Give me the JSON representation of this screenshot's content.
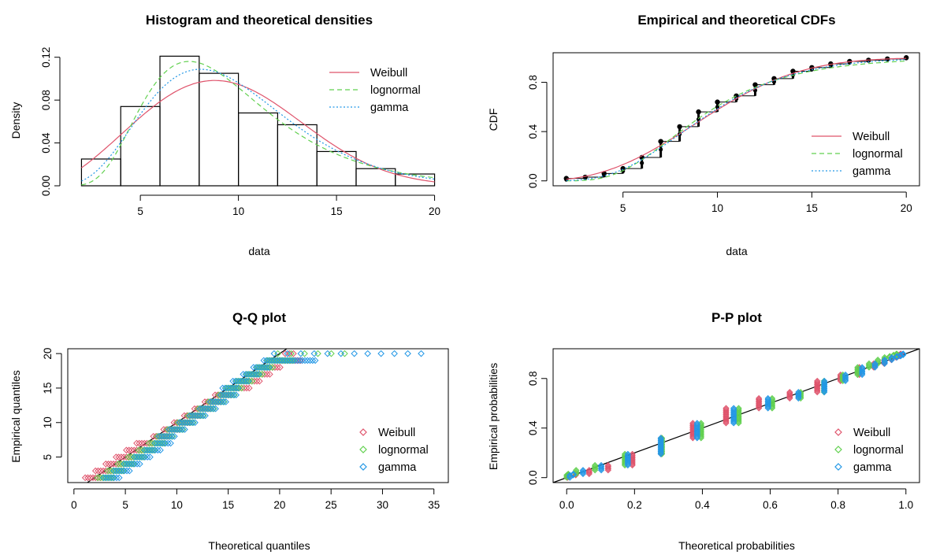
{
  "colors": {
    "weibull": "#DF536B",
    "lognormal": "#61D04F",
    "gamma": "#2297E6",
    "axis": "#000000",
    "empirical": "#000000"
  },
  "chart_data": [
    {
      "type": "bar",
      "title": "Histogram and theoretical densities",
      "xlabel": "data",
      "ylabel": "Density",
      "xlim": [
        1.3,
        20.7
      ],
      "ylim": [
        0,
        0.122
      ],
      "xticks": [
        5,
        10,
        15,
        20
      ],
      "yticks": [
        "0.00",
        "0.04",
        "0.08",
        "0.12"
      ],
      "bins": [
        {
          "x0": 2,
          "x1": 4,
          "density": 0.025
        },
        {
          "x0": 4,
          "x1": 6,
          "density": 0.074
        },
        {
          "x0": 6,
          "x1": 8,
          "density": 0.121
        },
        {
          "x0": 8,
          "x1": 10,
          "density": 0.105
        },
        {
          "x0": 10,
          "x1": 12,
          "density": 0.068
        },
        {
          "x0": 12,
          "x1": 14,
          "density": 0.057
        },
        {
          "x0": 14,
          "x1": 16,
          "density": 0.032
        },
        {
          "x0": 16,
          "x1": 18,
          "density": 0.016
        },
        {
          "x0": 18,
          "x1": 20,
          "density": 0.011
        }
      ],
      "series": [
        {
          "name": "Weibull",
          "linetype": "solid",
          "peak_x": 9.3,
          "peak_y": 0.102
        },
        {
          "name": "lognormal",
          "linetype": "dashed",
          "peak_x": 7.8,
          "peak_y": 0.111
        },
        {
          "name": "gamma",
          "linetype": "dotted",
          "peak_x": 8.0,
          "peak_y": 0.115
        }
      ],
      "legend": "top-right"
    },
    {
      "type": "line",
      "title": "Empirical and theoretical CDFs",
      "xlabel": "data",
      "ylabel": "CDF",
      "xlim": [
        1.3,
        20.7
      ],
      "ylim": [
        -0.04,
        1.04
      ],
      "xticks": [
        5,
        10,
        15,
        20
      ],
      "yticks": [
        "0.0",
        "0.4",
        "0.8"
      ],
      "empirical_steps": [
        {
          "x": 2,
          "lo": 0.0,
          "hi": 0.02
        },
        {
          "x": 3,
          "lo": 0.02,
          "hi": 0.03
        },
        {
          "x": 4,
          "lo": 0.03,
          "hi": 0.06
        },
        {
          "x": 5,
          "lo": 0.06,
          "hi": 0.1
        },
        {
          "x": 6,
          "lo": 0.1,
          "hi": 0.19
        },
        {
          "x": 7,
          "lo": 0.19,
          "hi": 0.32
        },
        {
          "x": 8,
          "lo": 0.32,
          "hi": 0.44
        },
        {
          "x": 9,
          "lo": 0.44,
          "hi": 0.56
        },
        {
          "x": 10,
          "lo": 0.56,
          "hi": 0.64
        },
        {
          "x": 11,
          "lo": 0.64,
          "hi": 0.69
        },
        {
          "x": 12,
          "lo": 0.69,
          "hi": 0.78
        },
        {
          "x": 13,
          "lo": 0.78,
          "hi": 0.83
        },
        {
          "x": 14,
          "lo": 0.83,
          "hi": 0.89
        },
        {
          "x": 15,
          "lo": 0.89,
          "hi": 0.92
        },
        {
          "x": 16,
          "lo": 0.92,
          "hi": 0.95
        },
        {
          "x": 17,
          "lo": 0.95,
          "hi": 0.97
        },
        {
          "x": 18,
          "lo": 0.97,
          "hi": 0.98
        },
        {
          "x": 19,
          "lo": 0.98,
          "hi": 0.99
        },
        {
          "x": 20,
          "lo": 0.99,
          "hi": 1.0
        }
      ],
      "series": [
        {
          "name": "Weibull",
          "linetype": "solid"
        },
        {
          "name": "lognormal",
          "linetype": "dashed"
        },
        {
          "name": "gamma",
          "linetype": "dotted"
        }
      ],
      "legend": "bottom-right"
    },
    {
      "type": "scatter",
      "title": "Q-Q plot",
      "xlabel": "Theoretical quantiles",
      "ylabel": "Empirical quantiles",
      "xlim": [
        -0.6,
        36.4
      ],
      "ylim": [
        1.3,
        20.7
      ],
      "xticks": [
        0,
        5,
        10,
        15,
        20,
        25,
        30,
        35
      ],
      "yticks": [
        5,
        10,
        15,
        20
      ],
      "series": [
        {
          "name": "Weibull",
          "marker": "diamond"
        },
        {
          "name": "lognormal",
          "marker": "diamond"
        },
        {
          "name": "gamma",
          "marker": "diamond"
        }
      ],
      "gamma_max_theoretical": 35,
      "reference_line": "y = x",
      "legend": "bottom-right"
    },
    {
      "type": "scatter",
      "title": "P-P plot",
      "xlabel": "Theoretical probabilities",
      "ylabel": "Empirical probabilities",
      "xlim": [
        -0.04,
        1.04
      ],
      "ylim": [
        -0.04,
        1.04
      ],
      "xticks": [
        "0.0",
        "0.2",
        "0.4",
        "0.6",
        "0.8",
        "1.0"
      ],
      "yticks": [
        "0.0",
        "0.4",
        "0.8"
      ],
      "series": [
        {
          "name": "Weibull",
          "marker": "diamond"
        },
        {
          "name": "lognormal",
          "marker": "diamond"
        },
        {
          "name": "gamma",
          "marker": "diamond"
        }
      ],
      "reference_line": "y = x",
      "legend": "bottom-right"
    }
  ]
}
